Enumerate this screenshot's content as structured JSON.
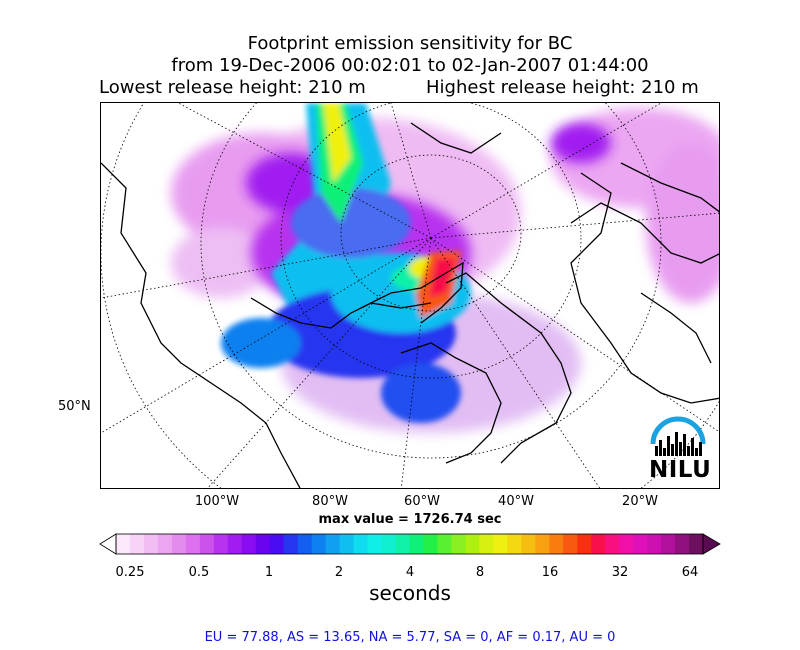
{
  "title_line1": "Footprint emission sensitivity for BC",
  "title_line2": "from 19-Dec-2006 00:02:01 to 02-Jan-2007 01:44:00",
  "title_lowest": "Lowest release height: 210 m",
  "title_highest": "Highest release height: 210 m",
  "map": {
    "longitude_ticks": [
      "100°W",
      "80°W",
      "60°W",
      "40°W",
      "20°W"
    ],
    "latitude_tick": "50°N",
    "max_value": "max value = 1726.74 sec",
    "logo": "NILU",
    "logo_color": "#1aa3e0"
  },
  "colorbar": {
    "tick_labels": [
      "0.25",
      "0.5",
      "1",
      "2",
      "4",
      "8",
      "16",
      "32",
      "64"
    ],
    "unit": "seconds",
    "colors": [
      "#fbe9fb",
      "#f7d3f7",
      "#f2bdf2",
      "#eca5f1",
      "#e48bee",
      "#dc70ee",
      "#cc52ee",
      "#b733ef",
      "#a11cf0",
      "#8b0cf0",
      "#6a04f0",
      "#4a0cf0",
      "#2636f0",
      "#125ef0",
      "#0f80f0",
      "#10a0f0",
      "#10bff0",
      "#10dcf0",
      "#10eee8",
      "#10f0d0",
      "#10f0a8",
      "#10f078",
      "#20f048",
      "#58f030",
      "#88f020",
      "#b0f010",
      "#d8f010",
      "#f0f010",
      "#f4d810",
      "#f6be10",
      "#f8a010",
      "#f87c10",
      "#f85810",
      "#f83010",
      "#f8104a",
      "#f81080",
      "#f010a8",
      "#e010b8",
      "#cc10b0",
      "#b0109c",
      "#901080",
      "#6e1060"
    ]
  },
  "footer": "EU = 77.88,  AS = 13.65,  NA = 5.77,  SA = 0,  AF = 0.17,  AU = 0"
}
